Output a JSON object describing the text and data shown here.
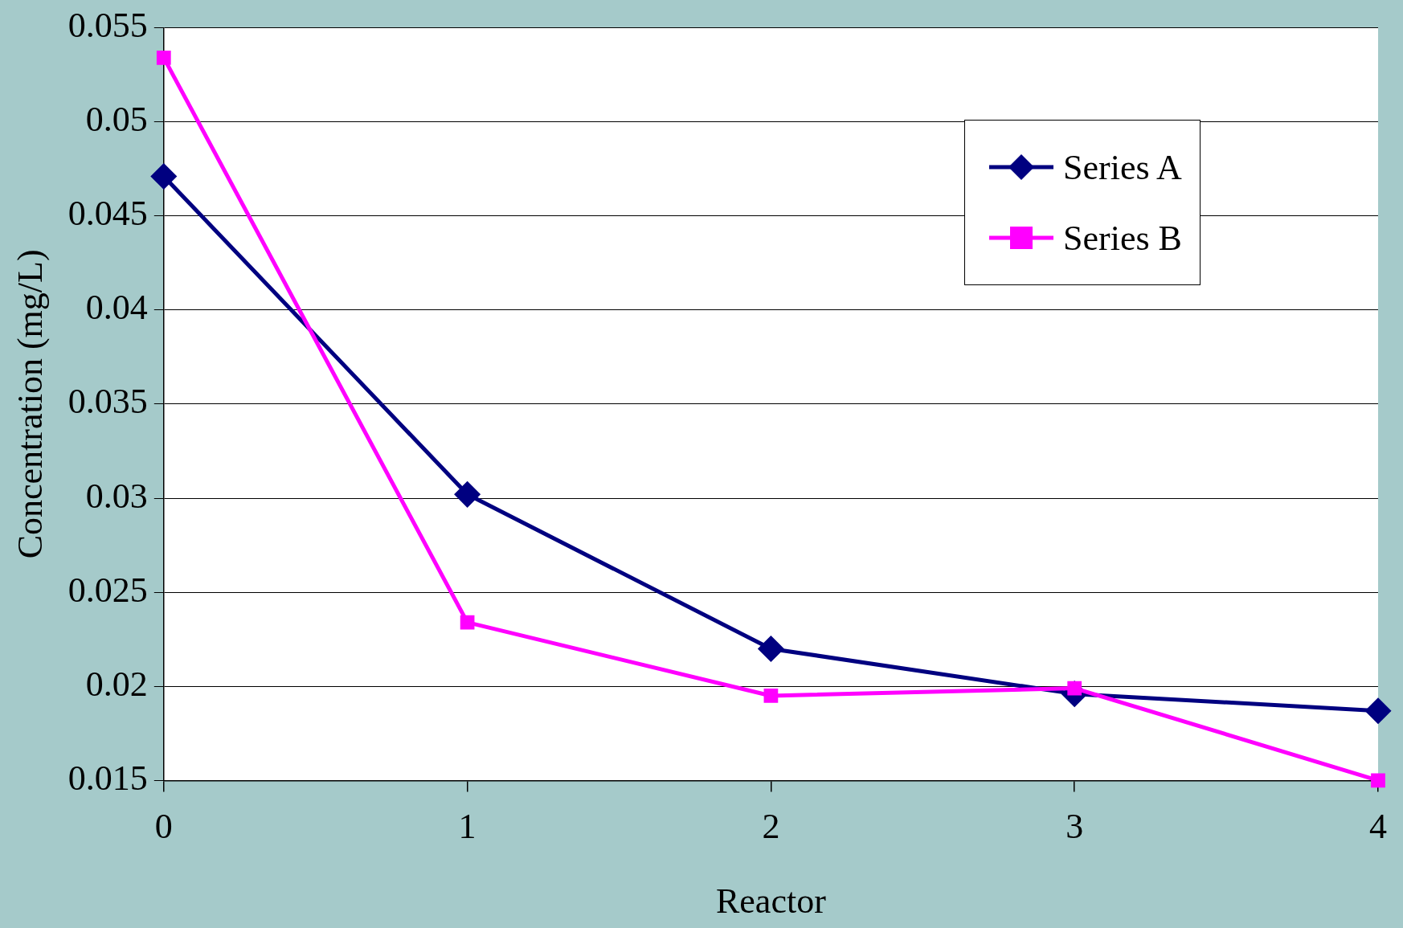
{
  "chart_data": {
    "type": "line",
    "xlabel": "Reactor",
    "ylabel": "Concentration (mg/L)",
    "categories": [
      "0",
      "1",
      "2",
      "3",
      "4"
    ],
    "series": [
      {
        "name": "Series A",
        "color": "#000080",
        "marker": "diamond",
        "values": [
          0.0471,
          0.0302,
          0.022,
          0.0196,
          0.0187
        ]
      },
      {
        "name": "Series B",
        "color": "#ff00ff",
        "marker": "square",
        "values": [
          0.0534,
          0.0234,
          0.0195,
          0.0199,
          0.015
        ]
      }
    ],
    "ylim": [
      0.015,
      0.055
    ],
    "yticks": [
      0.015,
      0.02,
      0.025,
      0.03,
      0.035,
      0.04,
      0.045,
      0.05,
      0.055
    ],
    "grid": "y",
    "legend": "top right",
    "line_style": "solid"
  }
}
